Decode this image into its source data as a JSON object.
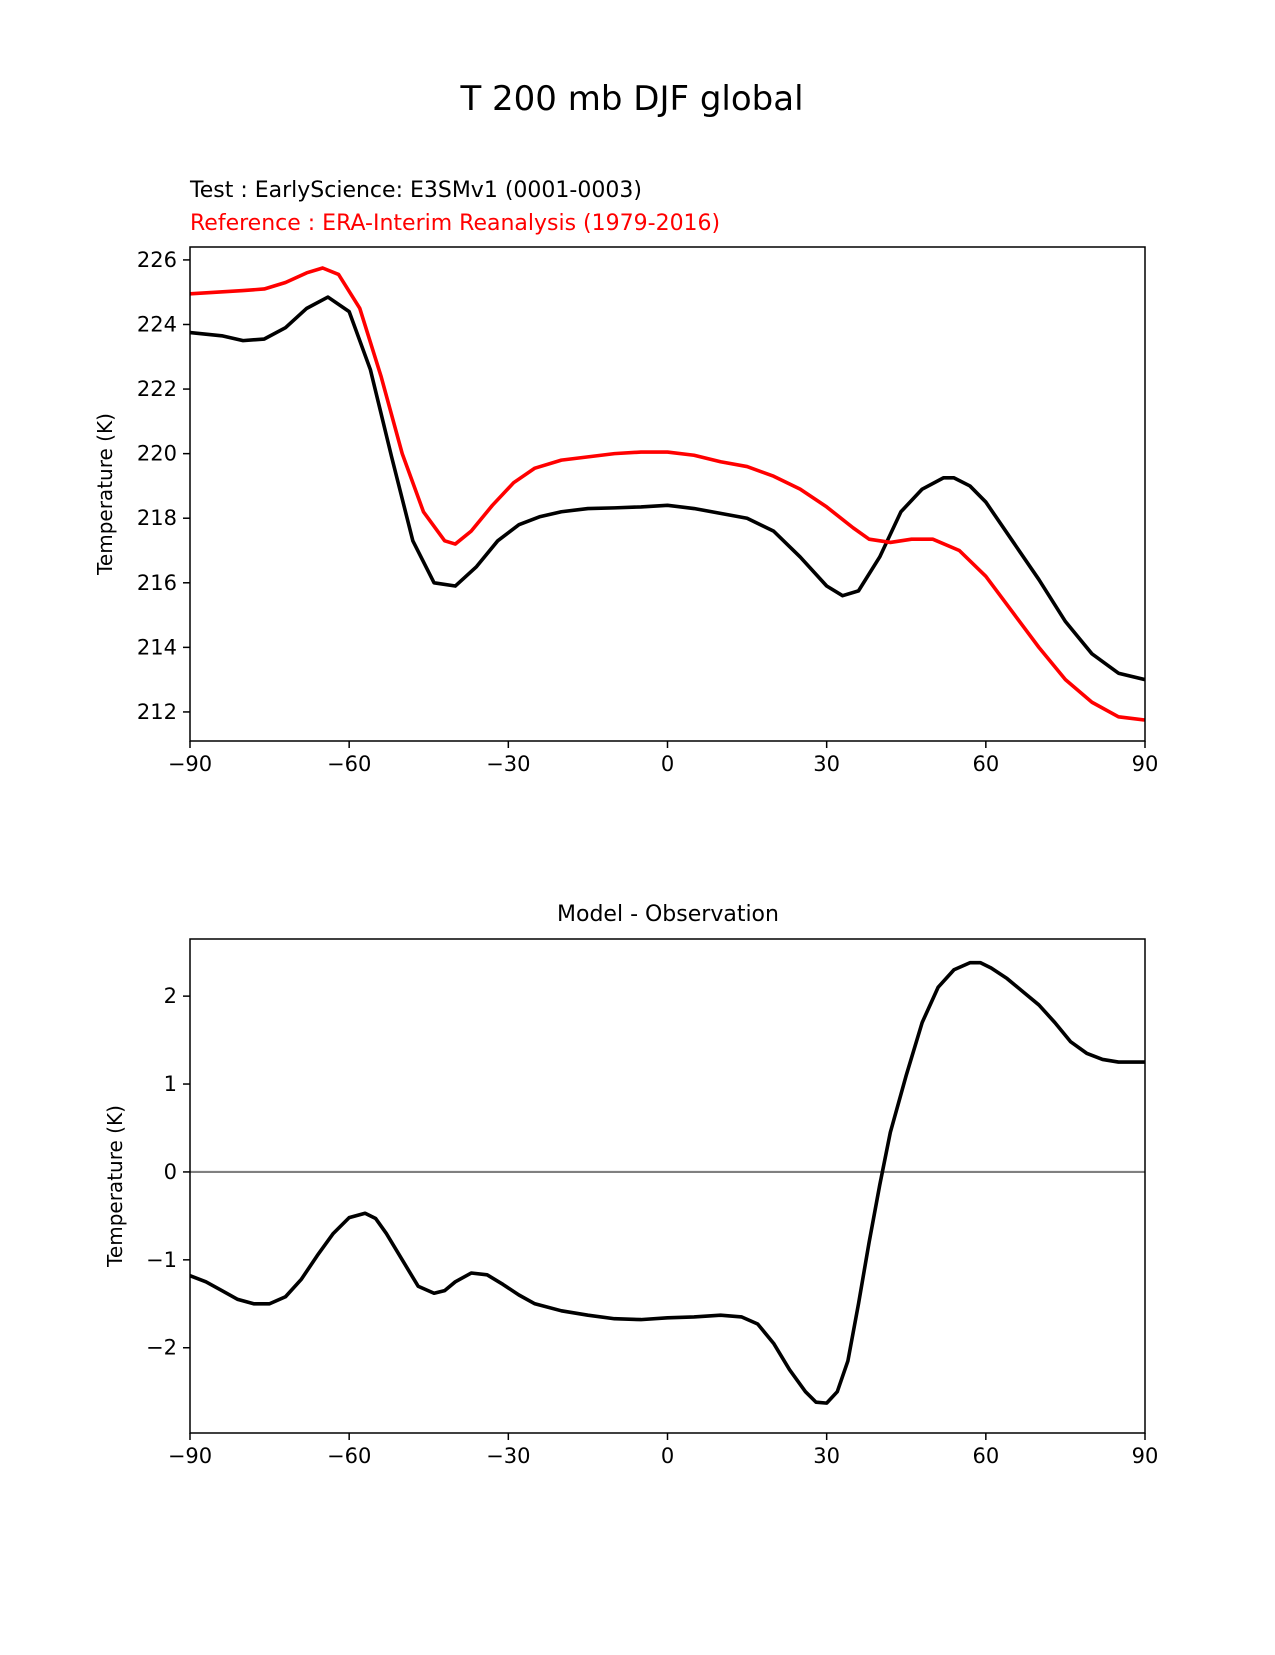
{
  "figure": {
    "title": "T 200 mb DJF global"
  },
  "chart_data": [
    {
      "type": "line",
      "title_test": "Test : EarlyScience: E3SMv1 (0001-0003)",
      "title_reference": "Reference : ERA-Interim Reanalysis (1979-2016)",
      "xlabel": "",
      "ylabel": "Temperature (K)",
      "xlim": [
        -90,
        90
      ],
      "ylim": [
        211.1,
        226.4
      ],
      "xticks": [
        -90,
        -60,
        -30,
        0,
        30,
        60,
        90
      ],
      "xtick_labels": [
        "−90",
        "−60",
        "−30",
        "0",
        "30",
        "60",
        "90"
      ],
      "yticks": [
        212,
        214,
        216,
        218,
        220,
        222,
        224,
        226
      ],
      "ytick_labels": [
        "212",
        "214",
        "216",
        "218",
        "220",
        "222",
        "224",
        "226"
      ],
      "grid": false,
      "series": [
        {
          "name": "Test",
          "color": "#000000",
          "x": [
            -90,
            -84,
            -80,
            -76,
            -72,
            -68,
            -64,
            -60,
            -56,
            -52,
            -48,
            -44,
            -40,
            -36,
            -32,
            -28,
            -24,
            -20,
            -15,
            -10,
            -5,
            0,
            5,
            10,
            15,
            20,
            25,
            30,
            33,
            36,
            40,
            44,
            48,
            52,
            54,
            57,
            60,
            65,
            70,
            75,
            80,
            85,
            90
          ],
          "values": [
            223.75,
            223.65,
            223.5,
            223.55,
            223.9,
            224.5,
            224.85,
            224.4,
            222.6,
            219.9,
            217.3,
            216.0,
            215.9,
            216.5,
            217.3,
            217.8,
            218.05,
            218.2,
            218.3,
            218.32,
            218.35,
            218.4,
            218.3,
            218.15,
            218.0,
            217.6,
            216.8,
            215.9,
            215.6,
            215.75,
            216.8,
            218.2,
            218.9,
            219.25,
            219.25,
            219.0,
            218.5,
            217.3,
            216.1,
            214.8,
            213.8,
            213.2,
            213.0
          ]
        },
        {
          "name": "Reference",
          "color": "#ff0000",
          "x": [
            -90,
            -85,
            -80,
            -76,
            -72,
            -68,
            -65,
            -62,
            -58,
            -54,
            -50,
            -46,
            -42,
            -40,
            -37,
            -33,
            -29,
            -25,
            -20,
            -15,
            -10,
            -5,
            0,
            5,
            10,
            15,
            20,
            25,
            30,
            35,
            38,
            42,
            46,
            50,
            55,
            60,
            65,
            70,
            75,
            80,
            85,
            90
          ],
          "values": [
            224.95,
            225.0,
            225.05,
            225.1,
            225.3,
            225.6,
            225.75,
            225.55,
            224.5,
            222.4,
            220.0,
            218.2,
            217.3,
            217.2,
            217.6,
            218.4,
            219.1,
            219.55,
            219.8,
            219.9,
            220.0,
            220.05,
            220.05,
            219.95,
            219.75,
            219.6,
            219.3,
            218.9,
            218.35,
            217.7,
            217.35,
            217.25,
            217.35,
            217.35,
            217.0,
            216.2,
            215.1,
            214.0,
            213.0,
            212.3,
            211.85,
            211.75
          ]
        }
      ]
    },
    {
      "type": "line",
      "title": "Model - Observation",
      "xlabel": "",
      "ylabel": "Temperature (K)",
      "xlim": [
        -90,
        90
      ],
      "ylim": [
        -2.97,
        2.65
      ],
      "xticks": [
        -90,
        -60,
        -30,
        0,
        30,
        60,
        90
      ],
      "xtick_labels": [
        "−90",
        "−60",
        "−30",
        "0",
        "30",
        "60",
        "90"
      ],
      "yticks": [
        -2,
        -1,
        0,
        1,
        2
      ],
      "ytick_labels": [
        "−2",
        "−1",
        "0",
        "1",
        "2"
      ],
      "grid": false,
      "reference_line": {
        "y": 0,
        "color": "#808080"
      },
      "series": [
        {
          "name": "Model - Observation",
          "color": "#000000",
          "x": [
            -90,
            -87,
            -84,
            -81,
            -78,
            -75,
            -72,
            -69,
            -66,
            -63,
            -60,
            -57,
            -55,
            -53,
            -50,
            -47,
            -44,
            -42,
            -40,
            -37,
            -34,
            -31,
            -28,
            -25,
            -20,
            -15,
            -10,
            -5,
            0,
            5,
            10,
            14,
            17,
            20,
            23,
            26,
            28,
            30,
            32,
            34,
            36,
            38,
            40,
            42,
            45,
            48,
            51,
            54,
            57,
            59,
            61,
            64,
            67,
            70,
            73,
            76,
            79,
            82,
            85,
            88,
            90
          ],
          "values": [
            -1.18,
            -1.25,
            -1.35,
            -1.45,
            -1.5,
            -1.5,
            -1.42,
            -1.22,
            -0.95,
            -0.7,
            -0.52,
            -0.47,
            -0.53,
            -0.7,
            -1.0,
            -1.3,
            -1.38,
            -1.35,
            -1.25,
            -1.15,
            -1.17,
            -1.28,
            -1.4,
            -1.5,
            -1.58,
            -1.63,
            -1.67,
            -1.68,
            -1.66,
            -1.65,
            -1.63,
            -1.65,
            -1.73,
            -1.95,
            -2.25,
            -2.5,
            -2.62,
            -2.63,
            -2.5,
            -2.15,
            -1.5,
            -0.8,
            -0.15,
            0.45,
            1.1,
            1.7,
            2.1,
            2.3,
            2.38,
            2.38,
            2.32,
            2.2,
            2.05,
            1.9,
            1.7,
            1.48,
            1.35,
            1.28,
            1.25,
            1.25,
            1.25
          ]
        }
      ]
    }
  ]
}
